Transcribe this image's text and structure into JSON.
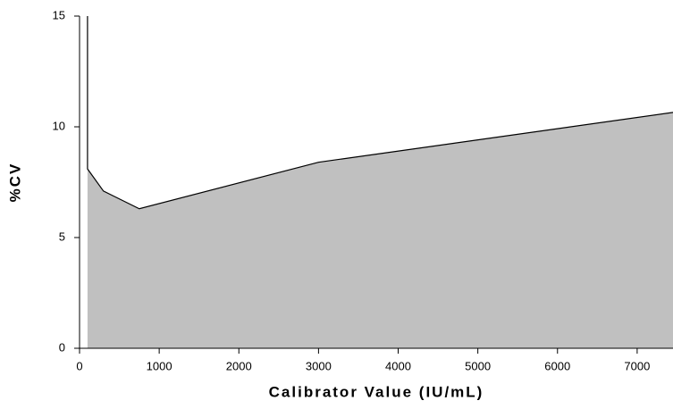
{
  "chart_data": {
    "type": "area",
    "xlabel": "Calibrator Value (IU/mL)",
    "ylabel": "%CV",
    "x": [
      100,
      100,
      300,
      750,
      3000,
      7450
    ],
    "series": [
      {
        "color": "#c0c0c0",
        "values": [
          15,
          8.1,
          7.1,
          6.3,
          8.4,
          10.65
        ]
      }
    ],
    "xlim": [
      0,
      7450
    ],
    "xticks": [
      0,
      1000,
      2000,
      3000,
      4000,
      5000,
      6000,
      7000
    ],
    "ylim": [
      0,
      15
    ],
    "yticks": [
      0,
      5,
      10,
      15
    ],
    "grid": false
  }
}
